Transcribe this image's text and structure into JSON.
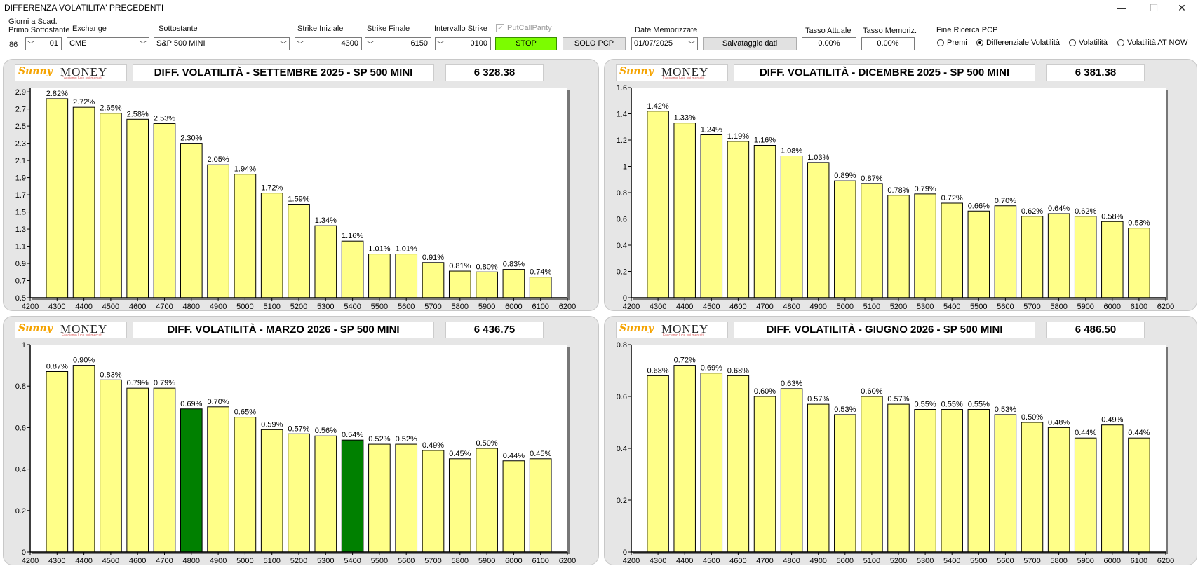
{
  "window": {
    "title": "DIFFERENZA VOLATILITA' PRECEDENTI",
    "min": "—",
    "max": "☐",
    "close": "✕"
  },
  "toolbar": {
    "giorni_label_1": "Giorni a Scad.",
    "giorni_label_2": "Primo Sottostante",
    "giorni_value": "86",
    "giorni_select": "01",
    "exchange_label": "Exchange",
    "exchange_value": "CME",
    "sottostante_label": "Sottostante",
    "sottostante_value": "S&P 500 MINI",
    "strike_iniziale_label": "Strike Iniziale",
    "strike_iniziale_value": "4300",
    "strike_finale_label": "Strike Finale",
    "strike_finale_value": "6150",
    "intervallo_label": "Intervallo Strike",
    "intervallo_value": "0100",
    "putcall_label": "PutCallParity",
    "stop_label": "STOP",
    "solo_pcp_label": "SOLO PCP",
    "date_label": "Date Memorizzate",
    "date_value": "01/07/2025",
    "salva_label": "Salvataggio dati",
    "tasso_attuale_label": "Tasso Attuale",
    "tasso_attuale_value": "0.00%",
    "tasso_memoriz_label": "Tasso Memoriz.",
    "tasso_memoriz_value": "0.00%",
    "fine_ricerca_label": "Fine Ricerca PCP",
    "radio_options": [
      "Premi",
      "Differenziale Volatilità",
      "Volatilità",
      "Volatilità AT NOW"
    ],
    "radio_selected": "Differenziale Volatilità"
  },
  "logo": {
    "sunny": "Sunny",
    "money": "MONEY",
    "tagline": "Facciamo luce sui mercati"
  },
  "colors": {
    "bar": "#ffff88",
    "highlight": "#008000",
    "stop": "#7cfc00"
  },
  "panels": [
    {
      "title": "DIFF. VOLATILITÀ - SETTEMBRE 2025 - SP 500 MINI",
      "value": "6 328.38",
      "chart_data": {
        "type": "bar",
        "categories": [
          "4300",
          "4400",
          "4500",
          "4600",
          "4700",
          "4800",
          "4900",
          "5000",
          "5100",
          "5200",
          "5300",
          "5400",
          "5500",
          "5600",
          "5700",
          "5800",
          "5900",
          "6000",
          "6100"
        ],
        "values": [
          2.82,
          2.72,
          2.65,
          2.58,
          2.53,
          2.3,
          2.05,
          1.94,
          1.72,
          1.59,
          1.34,
          1.16,
          1.01,
          1.01,
          0.91,
          0.81,
          0.8,
          0.83,
          0.74
        ],
        "labels": [
          "2.82%",
          "2.72%",
          "2.65%",
          "2.58%",
          "2.53%",
          "2.30%",
          "2.05%",
          "1.94%",
          "1.72%",
          "1.59%",
          "1.34%",
          "1.16%",
          "1.01%",
          "1.01%",
          "0.91%",
          "0.81%",
          "0.80%",
          "0.83%",
          "0.74%"
        ],
        "highlight": [],
        "xticks": [
          "4200",
          "4300",
          "4400",
          "4500",
          "4600",
          "4700",
          "4800",
          "4900",
          "5000",
          "5100",
          "5200",
          "5300",
          "5400",
          "5500",
          "5600",
          "5700",
          "5800",
          "5900",
          "6000",
          "6100",
          "6200"
        ],
        "yticks": [
          "0.5",
          "0.7",
          "0.9",
          "1.1",
          "1.3",
          "1.5",
          "1.7",
          "1.9",
          "2.1",
          "2.3",
          "2.5",
          "2.7",
          "2.9"
        ],
        "ylim": [
          0.5,
          2.95
        ]
      }
    },
    {
      "title": "DIFF. VOLATILITÀ - DICEMBRE 2025 - SP 500 MINI",
      "value": "6 381.38",
      "chart_data": {
        "type": "bar",
        "categories": [
          "4300",
          "4400",
          "4500",
          "4600",
          "4700",
          "4800",
          "4900",
          "5000",
          "5100",
          "5200",
          "5300",
          "5400",
          "5500",
          "5600",
          "5700",
          "5800",
          "5900",
          "6000",
          "6100"
        ],
        "values": [
          1.42,
          1.33,
          1.24,
          1.19,
          1.16,
          1.08,
          1.03,
          0.89,
          0.87,
          0.78,
          0.79,
          0.72,
          0.66,
          0.7,
          0.62,
          0.64,
          0.62,
          0.58,
          0.53
        ],
        "labels": [
          "1.42%",
          "1.33%",
          "1.24%",
          "1.19%",
          "1.16%",
          "1.08%",
          "1.03%",
          "0.89%",
          "0.87%",
          "0.78%",
          "0.79%",
          "0.72%",
          "0.66%",
          "0.70%",
          "0.62%",
          "0.64%",
          "0.62%",
          "0.58%",
          "0.53%"
        ],
        "highlight": [],
        "xticks": [
          "4200",
          "4300",
          "4400",
          "4500",
          "4600",
          "4700",
          "4800",
          "4900",
          "5000",
          "5100",
          "5200",
          "5300",
          "5400",
          "5500",
          "5600",
          "5700",
          "5800",
          "5900",
          "6000",
          "6100",
          "6200"
        ],
        "yticks": [
          "0",
          "0.2",
          "0.4",
          "0.6",
          "0.8",
          "1",
          "1.2",
          "1.4",
          "1.6"
        ],
        "ylim": [
          0,
          1.6
        ]
      }
    },
    {
      "title": "DIFF. VOLATILITÀ - MARZO 2026 - SP 500 MINI",
      "value": "6 436.75",
      "chart_data": {
        "type": "bar",
        "categories": [
          "4300",
          "4400",
          "4500",
          "4600",
          "4700",
          "4800",
          "4900",
          "5000",
          "5100",
          "5200",
          "5300",
          "5400",
          "5500",
          "5600",
          "5700",
          "5800",
          "5900",
          "6000",
          "6100"
        ],
        "values": [
          0.87,
          0.9,
          0.83,
          0.79,
          0.79,
          0.69,
          0.7,
          0.65,
          0.59,
          0.57,
          0.56,
          0.54,
          0.52,
          0.52,
          0.49,
          0.45,
          0.5,
          0.44,
          0.45
        ],
        "labels": [
          "0.87%",
          "0.90%",
          "0.83%",
          "0.79%",
          "0.79%",
          "0.69%",
          "0.70%",
          "0.65%",
          "0.59%",
          "0.57%",
          "0.56%",
          "0.54%",
          "0.52%",
          "0.52%",
          "0.49%",
          "0.45%",
          "0.50%",
          "0.44%",
          "0.45%"
        ],
        "highlight": [
          "4800",
          "5400"
        ],
        "xticks": [
          "4200",
          "4300",
          "4400",
          "4500",
          "4600",
          "4700",
          "4800",
          "4900",
          "5000",
          "5100",
          "5200",
          "5300",
          "5400",
          "5500",
          "5600",
          "5700",
          "5800",
          "5900",
          "6000",
          "6100",
          "6200"
        ],
        "yticks": [
          "0",
          "0.2",
          "0.4",
          "0.6",
          "0.8",
          "1"
        ],
        "ylim": [
          0,
          1.0
        ]
      }
    },
    {
      "title": "DIFF. VOLATILITÀ - GIUGNO 2026 - SP 500 MINI",
      "value": "6 486.50",
      "chart_data": {
        "type": "bar",
        "categories": [
          "4300",
          "4400",
          "4500",
          "4600",
          "4700",
          "4800",
          "4900",
          "5000",
          "5100",
          "5200",
          "5300",
          "5400",
          "5500",
          "5600",
          "5700",
          "5800",
          "5900",
          "6000",
          "6100"
        ],
        "values": [
          0.68,
          0.72,
          0.69,
          0.68,
          0.6,
          0.63,
          0.57,
          0.53,
          0.6,
          0.57,
          0.55,
          0.55,
          0.55,
          0.53,
          0.5,
          0.48,
          0.44,
          0.49,
          0.44
        ],
        "labels": [
          "0.68%",
          "0.72%",
          "0.69%",
          "0.68%",
          "0.60%",
          "0.63%",
          "0.57%",
          "0.53%",
          "0.60%",
          "0.57%",
          "0.55%",
          "0.55%",
          "0.55%",
          "0.53%",
          "0.50%",
          "0.48%",
          "0.44%",
          "0.49%",
          "0.44%"
        ],
        "highlight": [],
        "xticks": [
          "4200",
          "4300",
          "4400",
          "4500",
          "4600",
          "4700",
          "4800",
          "4900",
          "5000",
          "5100",
          "5200",
          "5300",
          "5400",
          "5500",
          "5600",
          "5700",
          "5800",
          "5900",
          "6000",
          "6100",
          "6200"
        ],
        "yticks": [
          "0",
          "0.2",
          "0.4",
          "0.6",
          "0.8"
        ],
        "ylim": [
          0,
          0.8
        ]
      }
    }
  ]
}
